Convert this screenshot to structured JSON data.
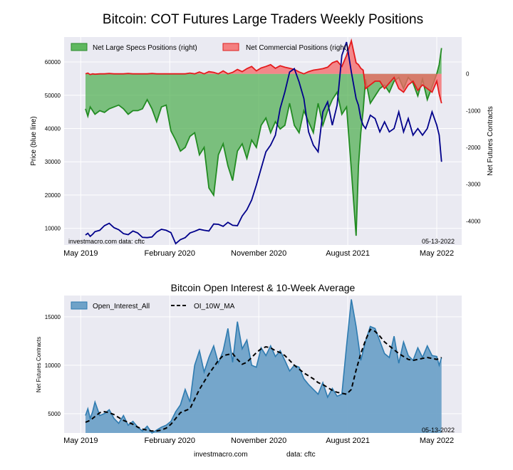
{
  "chart_data": [
    {
      "type": "area",
      "title": "Bitcoin: COT Futures Large Traders Weekly Positions",
      "ylabel_left": "Price (blue line)",
      "ylabel_right": "Net Futures Contracts",
      "ylim_left": [
        5000,
        67500
      ],
      "ylim_right": [
        -4650,
        1000
      ],
      "yticks_left": [
        10000,
        20000,
        30000,
        40000,
        50000,
        60000
      ],
      "yticks_right": [
        0,
        -1000,
        -2000,
        -3000,
        -4000
      ],
      "xlim": [
        2019.2,
        2022.55
      ],
      "xtick_labels": [
        "May 2019",
        "February 2020",
        "November 2020",
        "August 2021",
        "May 2022"
      ],
      "xtick_positions": [
        2019.34,
        2020.09,
        2020.84,
        2021.59,
        2022.34
      ],
      "legend": [
        "Net Large Specs Positions (right)",
        "Net Commercial Positions (right)"
      ],
      "left_note": "investmacro.com   data: cftc",
      "right_note": "05-13-2022",
      "series": [
        {
          "name": "Net Large Specs Positions (right)",
          "axis": "right",
          "x": [
            2019.38,
            2019.4,
            2019.42,
            2019.44,
            2019.46,
            2019.5,
            2019.54,
            2019.58,
            2019.62,
            2019.66,
            2019.7,
            2019.74,
            2019.78,
            2019.82,
            2019.86,
            2019.9,
            2019.94,
            2019.98,
            2020.02,
            2020.06,
            2020.1,
            2020.14,
            2020.18,
            2020.22,
            2020.26,
            2020.3,
            2020.34,
            2020.38,
            2020.42,
            2020.46,
            2020.5,
            2020.54,
            2020.58,
            2020.62,
            2020.66,
            2020.7,
            2020.74,
            2020.78,
            2020.82,
            2020.86,
            2020.9,
            2020.94,
            2020.98,
            2021.02,
            2021.06,
            2021.1,
            2021.14,
            2021.18,
            2021.22,
            2021.26,
            2021.3,
            2021.34,
            2021.38,
            2021.42,
            2021.46,
            2021.5,
            2021.54,
            2021.58,
            2021.62,
            2021.66,
            2021.68,
            2021.7,
            2021.72,
            2021.74,
            2021.78,
            2021.82,
            2021.86,
            2021.9,
            2021.94,
            2021.98,
            2022.02,
            2022.06,
            2022.1,
            2022.14,
            2022.18,
            2022.22,
            2022.26,
            2022.3,
            2022.34,
            2022.36,
            2022.38
          ],
          "values": [
            -950,
            -1150,
            -900,
            -1000,
            -1100,
            -1000,
            -1050,
            -950,
            -900,
            -850,
            -950,
            -1100,
            -1000,
            -1000,
            -950,
            -700,
            -950,
            -1300,
            -900,
            -850,
            -1550,
            -1800,
            -2100,
            -2000,
            -1700,
            -1600,
            -2200,
            -2000,
            -3100,
            -3300,
            -2200,
            -1900,
            -2500,
            -2900,
            -2100,
            -1900,
            -2300,
            -1800,
            -2000,
            -1400,
            -1200,
            -1600,
            -1300,
            -1500,
            -1400,
            -800,
            -1400,
            -1600,
            -1000,
            -1300,
            -1600,
            -800,
            -1400,
            -1000,
            -700,
            -500,
            -1100,
            -900,
            -2600,
            -4400,
            -2500,
            -1600,
            -1000,
            -150,
            -800,
            -600,
            -400,
            -300,
            -500,
            -200,
            -100,
            -400,
            -100,
            -250,
            -600,
            -150,
            -700,
            -350,
            0,
            250,
            700
          ]
        },
        {
          "name": "Net Commercial Positions (right)",
          "axis": "right",
          "x": [
            2019.38,
            2019.4,
            2019.42,
            2019.44,
            2019.46,
            2019.5,
            2019.54,
            2019.58,
            2019.62,
            2019.66,
            2019.7,
            2019.74,
            2019.78,
            2019.82,
            2019.86,
            2019.9,
            2019.94,
            2019.98,
            2020.02,
            2020.06,
            2020.1,
            2020.14,
            2020.18,
            2020.22,
            2020.26,
            2020.3,
            2020.34,
            2020.38,
            2020.42,
            2020.46,
            2020.5,
            2020.54,
            2020.58,
            2020.62,
            2020.66,
            2020.7,
            2020.74,
            2020.78,
            2020.82,
            2020.86,
            2020.9,
            2020.94,
            2020.98,
            2021.02,
            2021.06,
            2021.1,
            2021.14,
            2021.18,
            2021.22,
            2021.26,
            2021.3,
            2021.34,
            2021.38,
            2021.42,
            2021.46,
            2021.5,
            2021.54,
            2021.58,
            2021.62,
            2021.66,
            2021.68,
            2021.7,
            2021.72,
            2021.74,
            2021.78,
            2021.82,
            2021.86,
            2021.9,
            2021.94,
            2021.98,
            2022.02,
            2022.06,
            2022.1,
            2022.14,
            2022.18,
            2022.22,
            2022.26,
            2022.3,
            2022.34,
            2022.36,
            2022.38
          ],
          "values": [
            0,
            20,
            -20,
            0,
            -10,
            0,
            0,
            10,
            0,
            0,
            0,
            10,
            0,
            0,
            0,
            0,
            10,
            0,
            0,
            0,
            0,
            0,
            0,
            0,
            20,
            0,
            50,
            0,
            60,
            40,
            0,
            80,
            0,
            40,
            120,
            60,
            140,
            200,
            80,
            160,
            200,
            250,
            150,
            220,
            180,
            150,
            120,
            50,
            0,
            60,
            100,
            120,
            140,
            180,
            300,
            350,
            200,
            500,
            900,
            300,
            250,
            150,
            100,
            -400,
            -300,
            -200,
            -200,
            -400,
            -250,
            -100,
            -400,
            -500,
            -300,
            -200,
            -450,
            -300,
            -400,
            -500,
            -200,
            -550,
            -800
          ]
        },
        {
          "name": "Price (blue line)",
          "axis": "left",
          "x": [
            2019.38,
            2019.4,
            2019.42,
            2019.44,
            2019.46,
            2019.5,
            2019.54,
            2019.58,
            2019.62,
            2019.66,
            2019.7,
            2019.74,
            2019.78,
            2019.82,
            2019.86,
            2019.9,
            2019.94,
            2019.98,
            2020.02,
            2020.06,
            2020.1,
            2020.14,
            2020.18,
            2020.22,
            2020.26,
            2020.3,
            2020.34,
            2020.38,
            2020.42,
            2020.46,
            2020.5,
            2020.54,
            2020.58,
            2020.62,
            2020.66,
            2020.7,
            2020.74,
            2020.78,
            2020.82,
            2020.86,
            2020.9,
            2020.94,
            2020.98,
            2021.02,
            2021.06,
            2021.1,
            2021.14,
            2021.18,
            2021.22,
            2021.26,
            2021.3,
            2021.34,
            2021.38,
            2021.42,
            2021.46,
            2021.5,
            2021.54,
            2021.58,
            2021.62,
            2021.66,
            2021.68,
            2021.7,
            2021.72,
            2021.74,
            2021.78,
            2021.82,
            2021.86,
            2021.9,
            2021.94,
            2021.98,
            2022.02,
            2022.06,
            2022.1,
            2022.14,
            2022.18,
            2022.22,
            2022.26,
            2022.3,
            2022.34,
            2022.36,
            2022.38
          ],
          "values": [
            8000,
            8500,
            7600,
            8200,
            9000,
            9400,
            10800,
            11500,
            10200,
            9600,
            8400,
            8100,
            9200,
            8600,
            7300,
            7200,
            7400,
            8900,
            9700,
            9400,
            8700,
            5400,
            6600,
            7200,
            8600,
            9100,
            9700,
            9400,
            9200,
            11300,
            11200,
            10600,
            11800,
            10900,
            10800,
            13700,
            15600,
            18500,
            23000,
            28000,
            33000,
            35000,
            38000,
            46000,
            51000,
            57000,
            58000,
            54000,
            49000,
            39000,
            35000,
            33000,
            45000,
            48000,
            41000,
            47000,
            62000,
            66000,
            57000,
            49000,
            47000,
            43000,
            41000,
            40000,
            44000,
            43000,
            39000,
            42000,
            39000,
            40000,
            45000,
            39000,
            43000,
            38000,
            40000,
            38000,
            40000,
            45000,
            41000,
            38000,
            30000
          ]
        }
      ]
    },
    {
      "type": "area",
      "title": "Bitcoin Open Interest & 10-Week Average",
      "ylabel": "Net Futures Contracts",
      "ylim": [
        3000,
        17200
      ],
      "yticks": [
        5000,
        10000,
        15000
      ],
      "xlim": [
        2019.2,
        2022.55
      ],
      "xtick_labels": [
        "May 2019",
        "February 2020",
        "November 2020",
        "August 2021",
        "May 2022"
      ],
      "xtick_positions": [
        2019.34,
        2020.09,
        2020.84,
        2021.59,
        2022.34
      ],
      "legend": [
        "Open_Interest_All",
        "OI_10W_MA"
      ],
      "right_note": "05-13-2022",
      "series": [
        {
          "name": "Open_Interest_All",
          "x": [
            2019.38,
            2019.4,
            2019.42,
            2019.44,
            2019.46,
            2019.5,
            2019.54,
            2019.58,
            2019.62,
            2019.66,
            2019.7,
            2019.74,
            2019.78,
            2019.82,
            2019.86,
            2019.9,
            2019.94,
            2019.98,
            2020.02,
            2020.06,
            2020.1,
            2020.14,
            2020.18,
            2020.22,
            2020.26,
            2020.3,
            2020.34,
            2020.38,
            2020.42,
            2020.46,
            2020.5,
            2020.54,
            2020.58,
            2020.62,
            2020.66,
            2020.7,
            2020.74,
            2020.78,
            2020.82,
            2020.86,
            2020.9,
            2020.94,
            2020.98,
            2021.02,
            2021.06,
            2021.1,
            2021.14,
            2021.18,
            2021.22,
            2021.26,
            2021.3,
            2021.34,
            2021.38,
            2021.42,
            2021.46,
            2021.5,
            2021.54,
            2021.58,
            2021.62,
            2021.66,
            2021.7,
            2021.74,
            2021.78,
            2021.82,
            2021.86,
            2021.9,
            2021.94,
            2021.98,
            2022.02,
            2022.06,
            2022.1,
            2022.14,
            2022.18,
            2022.22,
            2022.26,
            2022.3,
            2022.34,
            2022.36,
            2022.38
          ],
          "values": [
            4800,
            5500,
            4500,
            5200,
            6200,
            4800,
            5000,
            5400,
            4500,
            4000,
            4800,
            3800,
            4200,
            3600,
            3200,
            3700,
            3000,
            3300,
            3600,
            3800,
            4200,
            5200,
            5900,
            7500,
            6200,
            10000,
            11500,
            9300,
            10800,
            12000,
            10200,
            11500,
            13800,
            10300,
            14500,
            11700,
            12600,
            10000,
            9800,
            11800,
            11000,
            12000,
            10900,
            11500,
            10500,
            9400,
            10000,
            9800,
            8600,
            8000,
            7500,
            7000,
            8200,
            6700,
            7600,
            6800,
            7000,
            12000,
            16800,
            14000,
            10500,
            12500,
            14000,
            13800,
            12500,
            11200,
            10800,
            13000,
            10200,
            12400,
            11000,
            10500,
            11800,
            10800,
            12000,
            11000,
            10900,
            10000,
            10800
          ],
          "color": "#2e7bb0"
        },
        {
          "name": "OI_10W_MA",
          "x": [
            2019.38,
            2019.42,
            2019.46,
            2019.5,
            2019.54,
            2019.58,
            2019.62,
            2019.66,
            2019.7,
            2019.74,
            2019.78,
            2019.82,
            2019.86,
            2019.9,
            2019.94,
            2019.98,
            2020.02,
            2020.06,
            2020.1,
            2020.14,
            2020.18,
            2020.22,
            2020.26,
            2020.3,
            2020.34,
            2020.38,
            2020.42,
            2020.46,
            2020.5,
            2020.54,
            2020.58,
            2020.62,
            2020.66,
            2020.7,
            2020.74,
            2020.78,
            2020.82,
            2020.86,
            2020.9,
            2020.94,
            2020.98,
            2021.02,
            2021.06,
            2021.1,
            2021.14,
            2021.18,
            2021.22,
            2021.26,
            2021.3,
            2021.34,
            2021.38,
            2021.42,
            2021.46,
            2021.5,
            2021.54,
            2021.58,
            2021.62,
            2021.66,
            2021.7,
            2021.74,
            2021.78,
            2021.82,
            2021.86,
            2021.9,
            2021.94,
            2021.98,
            2022.02,
            2022.06,
            2022.1,
            2022.14,
            2022.18,
            2022.22,
            2022.26,
            2022.3,
            2022.34,
            2022.38
          ],
          "values": [
            4100,
            4300,
            4700,
            5100,
            5200,
            5100,
            4900,
            4600,
            4300,
            4100,
            3900,
            3600,
            3400,
            3300,
            3200,
            3200,
            3300,
            3500,
            3900,
            4500,
            5100,
            5300,
            5500,
            6500,
            7500,
            8300,
            9100,
            9800,
            10500,
            11000,
            11100,
            11200,
            10600,
            10100,
            10300,
            10800,
            11300,
            11700,
            11900,
            11800,
            11500,
            11300,
            11000,
            10500,
            10000,
            9600,
            9200,
            8900,
            8600,
            8200,
            8000,
            7700,
            7400,
            7200,
            7100,
            7000,
            7500,
            9500,
            11200,
            12600,
            13700,
            13500,
            13000,
            12400,
            12000,
            11600,
            11200,
            10900,
            10600,
            10500,
            10600,
            10700,
            10800,
            10700,
            10600,
            10800
          ],
          "color": "#000000"
        }
      ]
    }
  ],
  "footer": {
    "site": "investmacro.com",
    "data_label": "data: cftc"
  }
}
